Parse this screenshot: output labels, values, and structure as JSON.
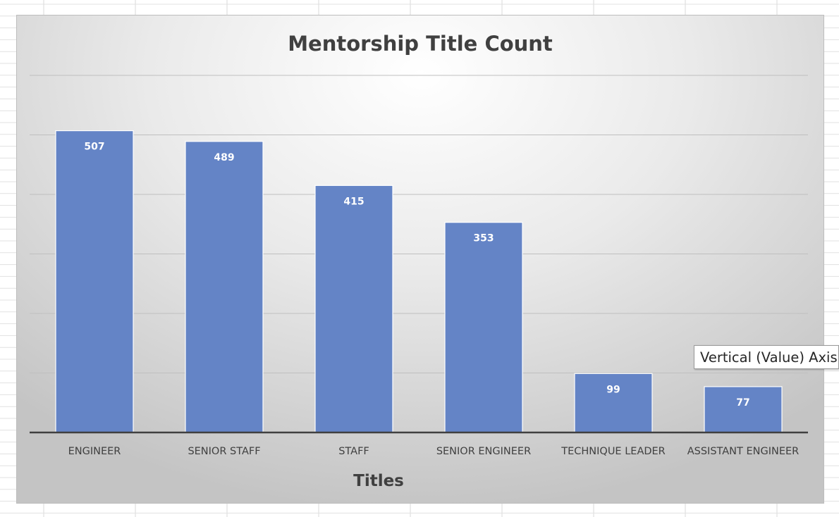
{
  "tooltip": {
    "text": "Vertical (Value) Axis"
  },
  "colors": {
    "bar": "#6484c6",
    "axis_line": "#404040",
    "gridline": "#bfbfbf"
  },
  "chart_data": {
    "type": "bar",
    "title": "Mentorship Title Count",
    "xlabel": "Titles",
    "ylabel": "",
    "categories": [
      "ENGINEER",
      "SENIOR STAFF",
      "STAFF",
      "SENIOR ENGINEER",
      "TECHNIQUE LEADER",
      "ASSISTANT ENGINEER"
    ],
    "values": [
      507,
      489,
      415,
      353,
      99,
      77
    ],
    "ylim": [
      0,
      600
    ],
    "gridline_step": 100,
    "grid": true,
    "legend": "none",
    "data_labels": true,
    "y_tick_labels_visible": false
  }
}
